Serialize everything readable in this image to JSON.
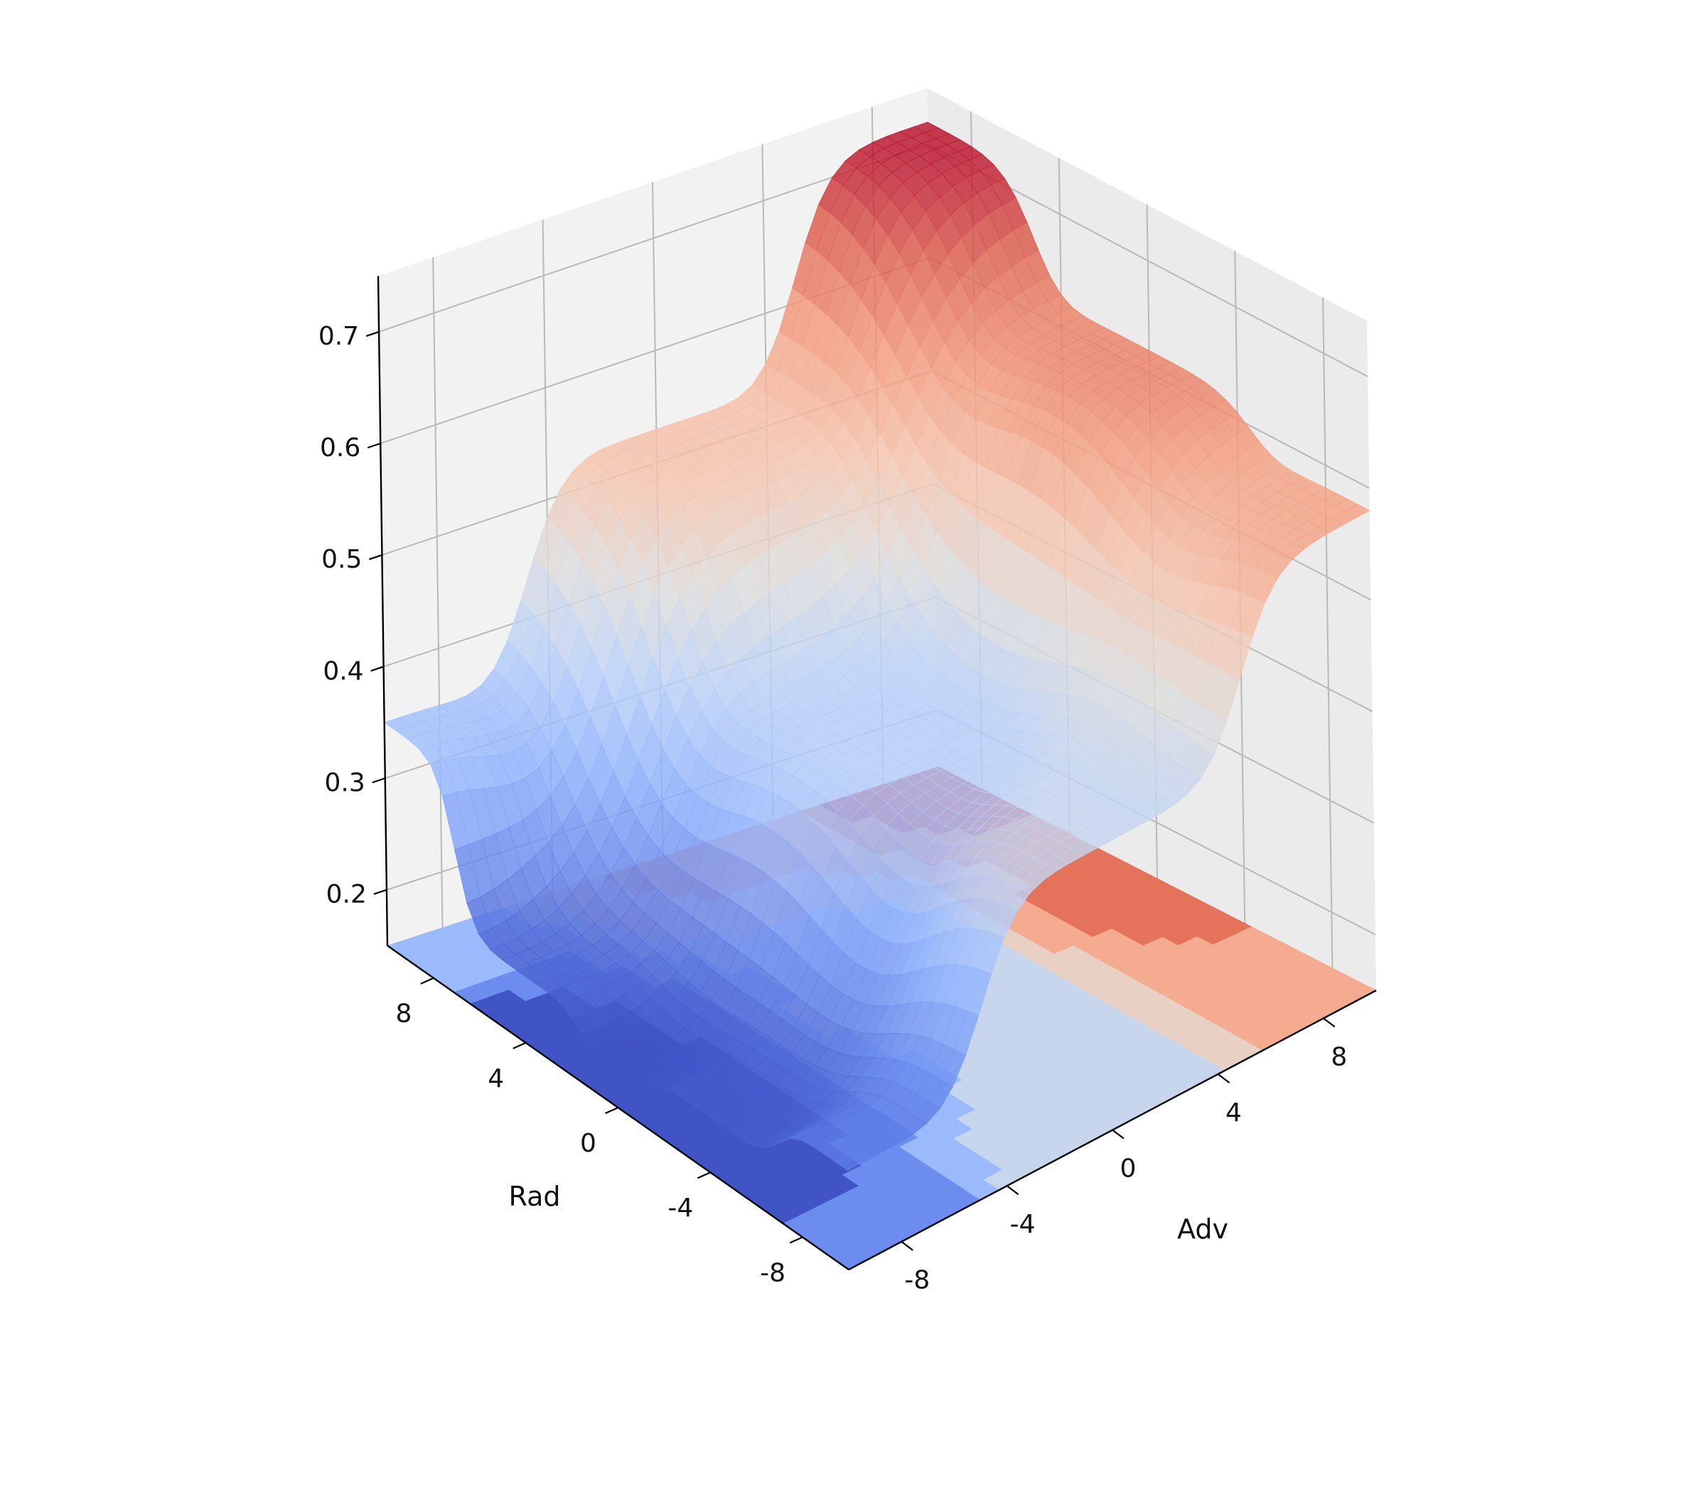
{
  "chart_data": {
    "type": "surface3d",
    "title": "",
    "xlabel": "Adv",
    "ylabel": "Rad",
    "zlabel": "",
    "x_ticks": [
      "-8",
      "-4",
      "0",
      "4",
      "8"
    ],
    "x_tick_values": [
      -8,
      -4,
      0,
      4,
      8
    ],
    "y_ticks": [
      "-8",
      "-4",
      "0",
      "4",
      "8"
    ],
    "y_tick_values": [
      -8,
      -4,
      0,
      4,
      8
    ],
    "z_ticks": [
      "0.2",
      "0.3",
      "0.4",
      "0.5",
      "0.6",
      "0.7"
    ],
    "z_tick_values": [
      0.2,
      0.3,
      0.4,
      0.5,
      0.6,
      0.7
    ],
    "xlim": [
      -10,
      10
    ],
    "ylim": [
      -10,
      10
    ],
    "zlim": [
      0.15,
      0.75
    ],
    "colormap": "coolwarm",
    "grid": true,
    "contour_projection": "filled contours on bottom plane",
    "series": [
      {
        "surface_samples_adv_x_rad_z": [
          {
            "adv": -10,
            "rad": 10,
            "value": 0.35
          },
          {
            "adv": -10,
            "rad": 4,
            "value": 0.21
          },
          {
            "adv": -10,
            "rad": 0,
            "value": 0.19
          },
          {
            "adv": -10,
            "rad": -4,
            "value": 0.2
          },
          {
            "adv": -10,
            "rad": -10,
            "value": 0.24
          },
          {
            "adv": 0,
            "rad": 10,
            "value": 0.53
          },
          {
            "adv": 0,
            "rad": 0,
            "value": 0.38
          },
          {
            "adv": 0,
            "rad": -10,
            "value": 0.41
          },
          {
            "adv": 10,
            "rad": 10,
            "value": 0.72
          },
          {
            "adv": 10,
            "rad": 0,
            "value": 0.62
          },
          {
            "adv": 10,
            "rad": -10,
            "value": 0.58
          }
        ]
      }
    ]
  }
}
